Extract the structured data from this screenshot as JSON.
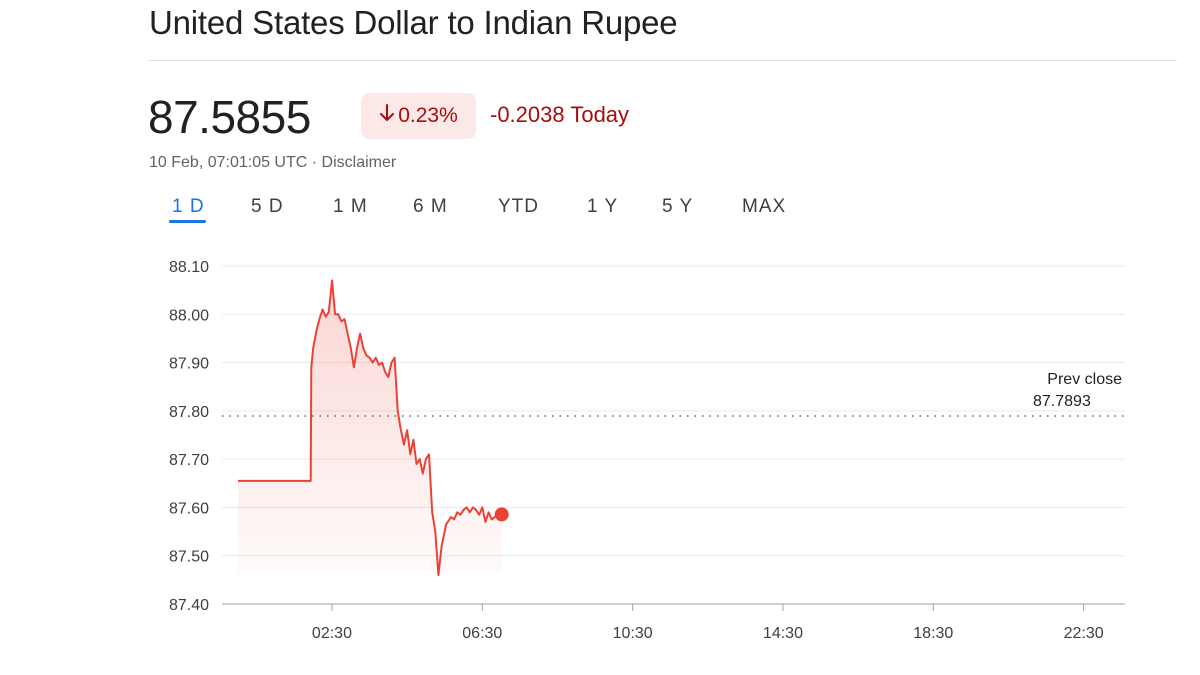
{
  "header": {
    "title": "United States Dollar to Indian Rupee",
    "price": "87.5855",
    "change_percent": "0.23%",
    "change_arrow_icon": "arrow-down-icon",
    "change_today": "-0.2038 Today",
    "timestamp": "10 Feb, 07:01:05 UTC",
    "separator": "·",
    "disclaimer": "Disclaimer"
  },
  "tabs": [
    "1 D",
    "5 D",
    "1 M",
    "6 M",
    "YTD",
    "1 Y",
    "5 Y",
    "MAX"
  ],
  "active_tab": "1 D",
  "colors": {
    "line": "#ea4335",
    "negative_text": "#a50e0e",
    "chip_bg": "#fce8e6",
    "active_tab": "#1a73e8"
  },
  "chart_data": {
    "type": "line",
    "ylim": [
      87.4,
      88.1
    ],
    "y_ticks": [
      "88.10",
      "88.00",
      "87.90",
      "87.80",
      "87.70",
      "87.60",
      "87.50",
      "87.40"
    ],
    "x_ticks": [
      "02:30",
      "06:30",
      "10:30",
      "14:30",
      "18:30",
      "22:30"
    ],
    "prev_close_label": "Prev close",
    "prev_close_value": "87.7893",
    "prev_close": 87.7893,
    "legend": "none",
    "grid": true,
    "series": [
      {
        "x": [
          "00:00",
          "00:30",
          "01:00",
          "01:30",
          "01:56",
          "01:57",
          "02:00",
          "02:05",
          "02:10",
          "02:15",
          "02:20",
          "02:25",
          "02:30",
          "02:35",
          "02:40",
          "02:45",
          "02:50",
          "02:55",
          "03:00",
          "03:05",
          "03:10",
          "03:15",
          "03:20",
          "03:25",
          "03:30",
          "03:35",
          "03:40",
          "03:45",
          "03:50",
          "03:55",
          "04:00",
          "04:05",
          "04:10",
          "04:15",
          "04:20",
          "04:25",
          "04:30",
          "04:35",
          "04:40",
          "04:45",
          "04:50",
          "04:55",
          "05:00",
          "05:05",
          "05:10",
          "05:15",
          "05:20",
          "05:25",
          "05:30",
          "05:32",
          "05:35",
          "05:40",
          "05:45",
          "05:50",
          "05:55",
          "06:00",
          "06:05",
          "06:10",
          "06:15",
          "06:20",
          "06:25",
          "06:30",
          "06:35",
          "06:40",
          "06:45",
          "06:50",
          "06:55",
          "07:00",
          "07:01"
        ],
        "y": [
          87.655,
          87.655,
          87.655,
          87.655,
          87.655,
          87.89,
          87.93,
          87.965,
          87.99,
          88.01,
          87.995,
          88.005,
          88.07,
          88.0,
          88.0,
          87.985,
          87.99,
          87.96,
          87.93,
          87.89,
          87.93,
          87.96,
          87.93,
          87.915,
          87.91,
          87.9,
          87.91,
          87.895,
          87.9,
          87.88,
          87.87,
          87.9,
          87.91,
          87.8,
          87.76,
          87.73,
          87.76,
          87.71,
          87.74,
          87.69,
          87.7,
          87.67,
          87.7,
          87.71,
          87.59,
          87.55,
          87.46,
          87.52,
          87.55,
          87.565,
          87.57,
          87.58,
          87.575,
          87.59,
          87.585,
          87.595,
          87.6,
          87.59,
          87.6,
          87.595,
          87.585,
          87.6,
          87.57,
          87.59,
          87.575,
          87.58,
          87.585,
          87.587,
          87.5855
        ]
      }
    ]
  }
}
